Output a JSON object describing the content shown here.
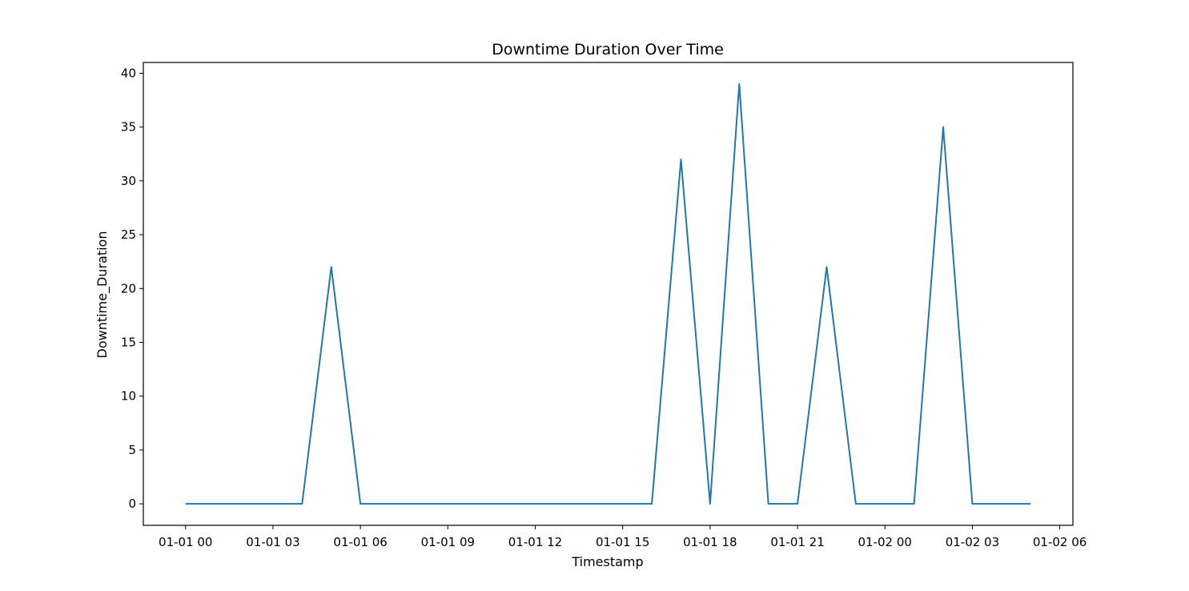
{
  "chart_data": {
    "type": "line",
    "title": "Downtime Duration Over Time",
    "xlabel": "Timestamp",
    "ylabel": "Downtime_Duration",
    "x_ticks": [
      "01-01 00",
      "01-01 03",
      "01-01 06",
      "01-01 09",
      "01-01 12",
      "01-01 15",
      "01-01 18",
      "01-01 21",
      "01-02 00",
      "01-02 03",
      "01-02 06"
    ],
    "y_ticks": [
      0,
      5,
      10,
      15,
      20,
      25,
      30,
      35,
      40
    ],
    "xlim": [
      "2023-01-01 00:00",
      "2023-01-02 06:00"
    ],
    "ylim": [
      -2,
      41
    ],
    "grid": false,
    "series": [
      {
        "color": "#1f77b4",
        "x": [
          "01-01 00:00",
          "01-01 01:00",
          "01-01 02:00",
          "01-01 03:00",
          "01-01 04:00",
          "01-01 05:00",
          "01-01 06:00",
          "01-01 07:00",
          "01-01 08:00",
          "01-01 09:00",
          "01-01 10:00",
          "01-01 11:00",
          "01-01 12:00",
          "01-01 13:00",
          "01-01 14:00",
          "01-01 15:00",
          "01-01 16:00",
          "01-01 17:00",
          "01-01 18:00",
          "01-01 19:00",
          "01-01 20:00",
          "01-01 21:00",
          "01-01 22:00",
          "01-01 23:00",
          "01-02 00:00",
          "01-02 01:00",
          "01-02 02:00",
          "01-02 03:00",
          "01-02 04:00",
          "01-02 05:00"
        ],
        "values": [
          0,
          0,
          0,
          0,
          0,
          22,
          0,
          0,
          0,
          0,
          0,
          0,
          0,
          0,
          0,
          0,
          0,
          32,
          0,
          39,
          0,
          0,
          22,
          0,
          0,
          0,
          35,
          0,
          0,
          0
        ]
      }
    ]
  }
}
